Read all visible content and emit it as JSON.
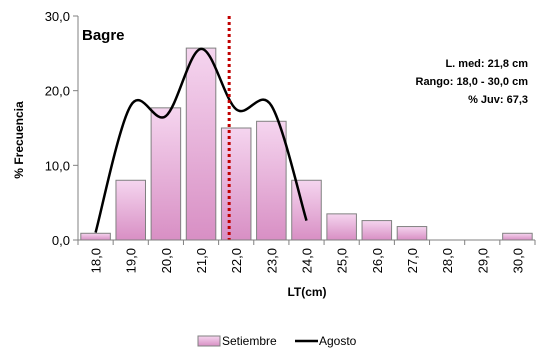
{
  "chart_data": {
    "type": "bar",
    "categories": [
      "18,0",
      "19,0",
      "20,0",
      "21,0",
      "22,0",
      "23,0",
      "24,0",
      "25,0",
      "26,0",
      "27,0",
      "28,0",
      "29,0",
      "30,0"
    ],
    "series": [
      {
        "name": "Setiembre",
        "type": "bar",
        "values": [
          0.9,
          8.0,
          17.7,
          25.7,
          15.0,
          15.9,
          8.0,
          3.5,
          2.6,
          1.8,
          0,
          0,
          0.9
        ],
        "color_top": "#f5d5ef",
        "color_bottom": "#d88fc4"
      },
      {
        "name": "Agosto",
        "type": "line",
        "x": [
          "18,0",
          "19,0",
          "20,0",
          "21,0",
          "22,0",
          "23,0",
          "24,0"
        ],
        "values": [
          1.0,
          18.0,
          16.6,
          25.6,
          17.5,
          18.0,
          2.6
        ],
        "color": "#000000"
      }
    ],
    "ylabel": "% Frecuencia",
    "xlabel": "LT(cm)",
    "yticks": [
      "0,0",
      "10,0",
      "20,0",
      "30,0"
    ],
    "ylim": [
      0,
      30
    ],
    "mean_line": {
      "value": 21.8,
      "color": "#c00000",
      "style": "dotted"
    },
    "species": "Bagre",
    "stats": [
      "L. med: 21,8 cm",
      "Rango: 18,0 - 30,0 cm",
      "% Juv: 67,3"
    ],
    "legend": {
      "position": "bottom",
      "entries": [
        "Setiembre",
        "Agosto"
      ]
    },
    "grid": false
  }
}
